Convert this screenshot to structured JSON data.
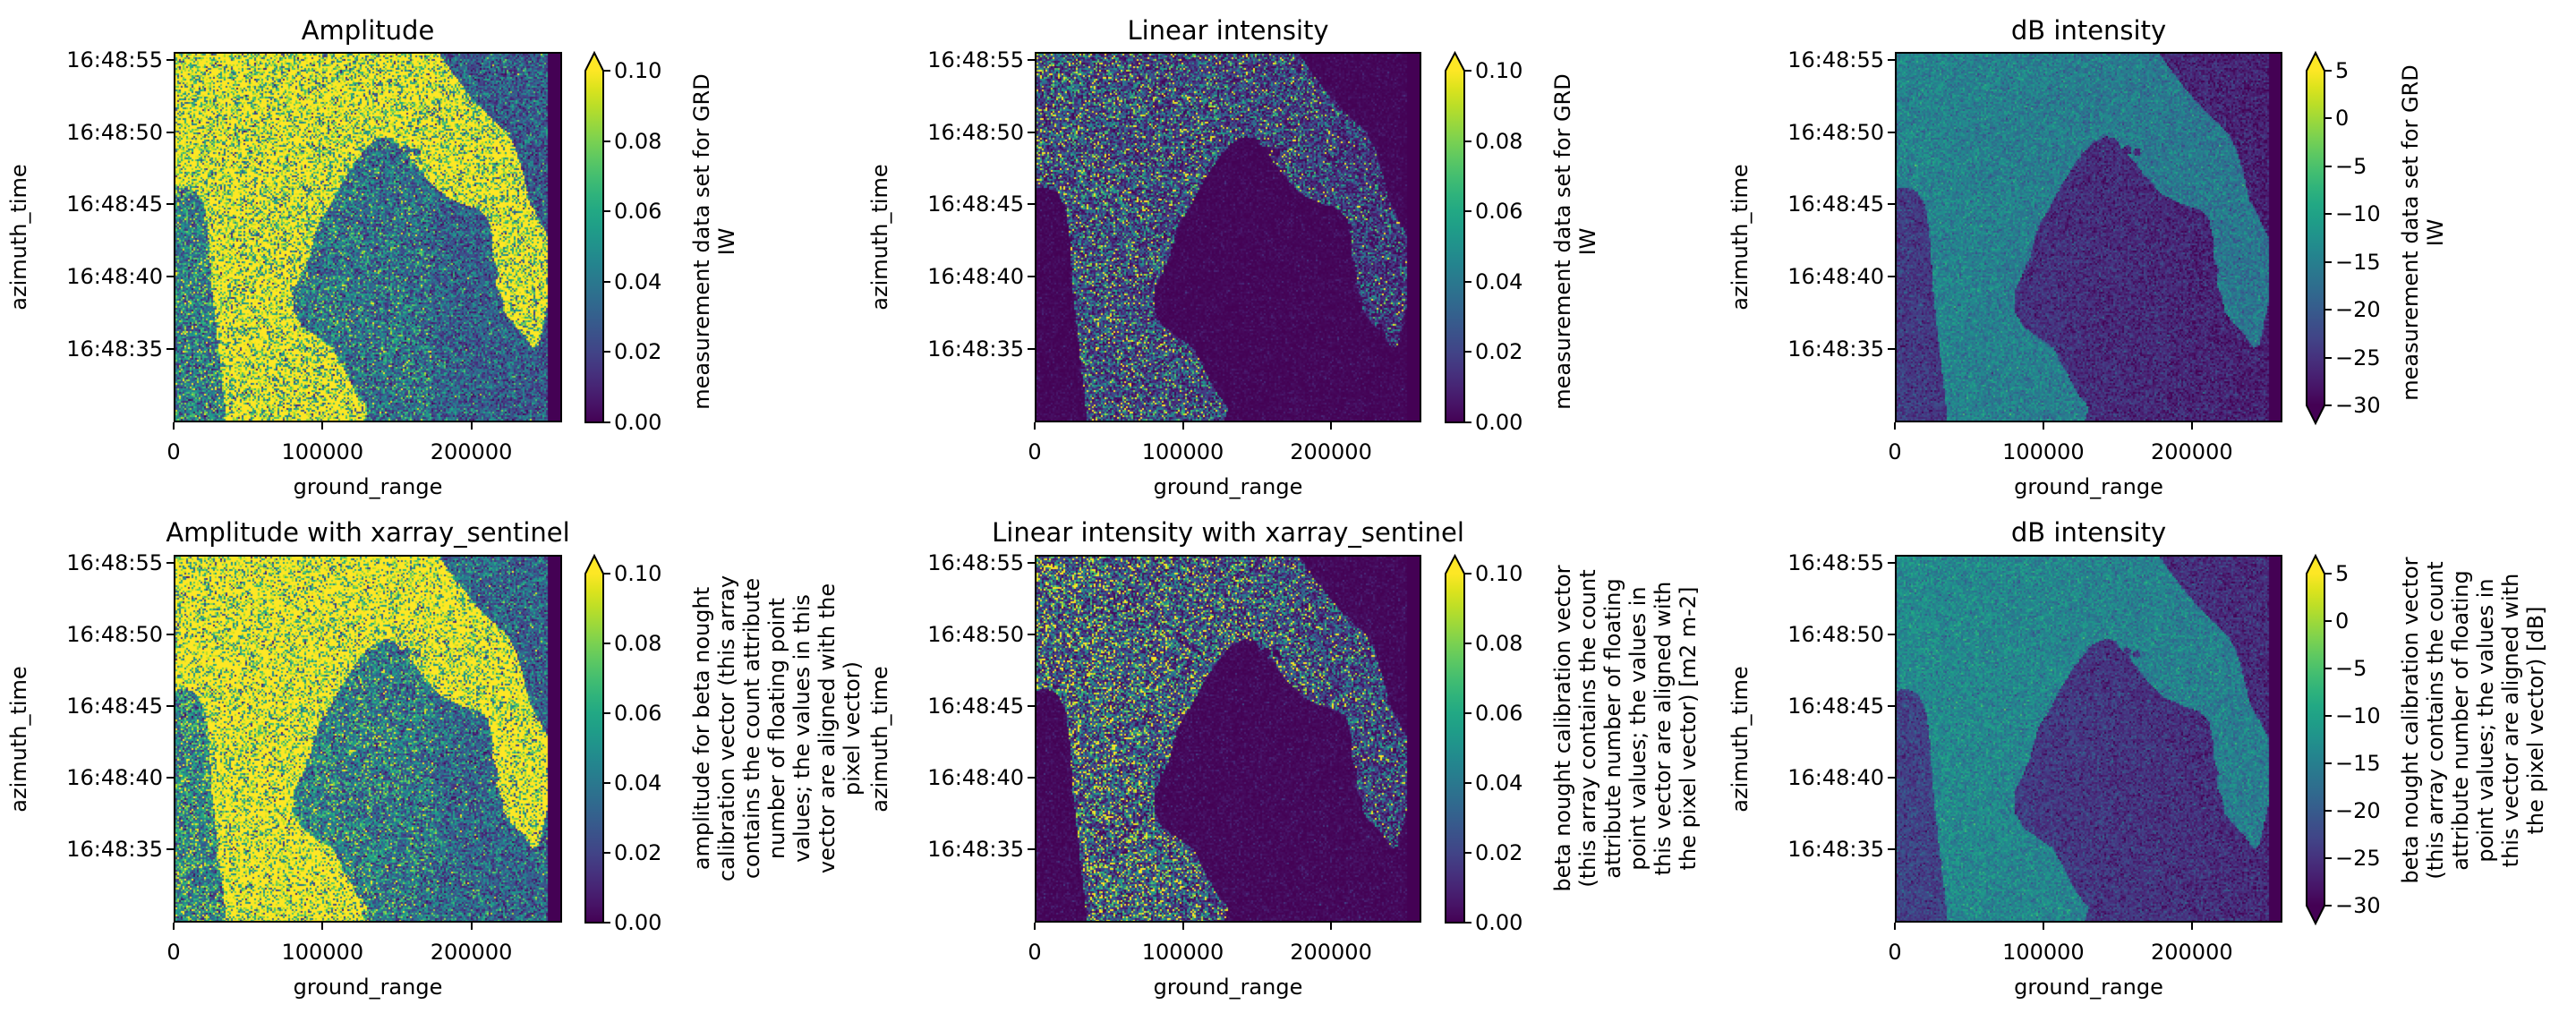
{
  "chart_data": [
    {
      "type": "heatmap",
      "title": "Amplitude",
      "xlabel": "ground_range",
      "ylabel": "azimuth_time",
      "xlim": [
        0,
        261000
      ],
      "xticks": [
        0,
        100000,
        200000
      ],
      "xtick_labels": [
        "0",
        "100000",
        "200000"
      ],
      "yticks": [
        "16:48:55",
        "16:48:50",
        "16:48:45",
        "16:48:40",
        "16:48:35"
      ],
      "colormap": "viridis",
      "clim": [
        0.0,
        0.1
      ],
      "extend": "max",
      "colorbar_ticks": [
        "0.10",
        "0.08",
        "0.06",
        "0.04",
        "0.02",
        "0.00"
      ],
      "colorbar_label": [
        "measurement data set for GRD",
        "IW"
      ],
      "render": {
        "mode": "amplitude",
        "land": 0.12,
        "sea": 0.045,
        "seed": 11
      }
    },
    {
      "type": "heatmap",
      "title": "Linear intensity",
      "xlabel": "ground_range",
      "ylabel": "azimuth_time",
      "xlim": [
        0,
        261000
      ],
      "xticks": [
        0,
        100000,
        200000
      ],
      "xtick_labels": [
        "0",
        "100000",
        "200000"
      ],
      "yticks": [
        "16:48:55",
        "16:48:50",
        "16:48:45",
        "16:48:40",
        "16:48:35"
      ],
      "colormap": "viridis",
      "clim": [
        0.0,
        0.1
      ],
      "extend": "max",
      "colorbar_ticks": [
        "0.10",
        "0.08",
        "0.06",
        "0.04",
        "0.02",
        "0.00"
      ],
      "colorbar_label": [
        "measurement data set for GRD",
        "IW"
      ],
      "render": {
        "mode": "linear",
        "land": 0.035,
        "sea": 0.002,
        "seed": 23
      }
    },
    {
      "type": "heatmap",
      "title": "dB intensity",
      "xlabel": "ground_range",
      "ylabel": "azimuth_time",
      "xlim": [
        0,
        261000
      ],
      "xticks": [
        0,
        100000,
        200000
      ],
      "xtick_labels": [
        "0",
        "100000",
        "200000"
      ],
      "yticks": [
        "16:48:55",
        "16:48:50",
        "16:48:45",
        "16:48:40",
        "16:48:35"
      ],
      "colormap": "viridis",
      "clim": [
        -30,
        5
      ],
      "extend": "both",
      "colorbar_ticks": [
        "5",
        "0",
        "−5",
        "−10",
        "−15",
        "−20",
        "−25",
        "−30"
      ],
      "colorbar_label": [
        "measurement data set for GRD",
        "IW"
      ],
      "render": {
        "mode": "db",
        "land": -14,
        "sea": -24,
        "seed": 37
      }
    },
    {
      "type": "heatmap",
      "title": "Amplitude with xarray_sentinel",
      "xlabel": "ground_range",
      "ylabel": "azimuth_time",
      "xlim": [
        0,
        261000
      ],
      "xticks": [
        0,
        100000,
        200000
      ],
      "xtick_labels": [
        "0",
        "100000",
        "200000"
      ],
      "yticks": [
        "16:48:55",
        "16:48:50",
        "16:48:45",
        "16:48:40",
        "16:48:35"
      ],
      "colormap": "viridis",
      "clim": [
        0.0,
        0.1
      ],
      "extend": "max",
      "colorbar_ticks": [
        "0.10",
        "0.08",
        "0.06",
        "0.04",
        "0.02",
        "0.00"
      ],
      "colorbar_label": [
        "amplitude for beta nought",
        "calibration vector (this array",
        "contains the count attribute",
        "number of floating point",
        "values; the values in this",
        "vector are aligned with the",
        "pixel vector)"
      ],
      "render": {
        "mode": "amplitude",
        "land": 0.13,
        "sea": 0.05,
        "seed": 53
      }
    },
    {
      "type": "heatmap",
      "title": "Linear intensity with xarray_sentinel",
      "xlabel": "ground_range",
      "ylabel": "azimuth_time",
      "xlim": [
        0,
        261000
      ],
      "xticks": [
        0,
        100000,
        200000
      ],
      "xtick_labels": [
        "0",
        "100000",
        "200000"
      ],
      "yticks": [
        "16:48:55",
        "16:48:50",
        "16:48:45",
        "16:48:40",
        "16:48:35"
      ],
      "colormap": "viridis",
      "clim": [
        0.0,
        0.1
      ],
      "extend": "max",
      "colorbar_ticks": [
        "0.10",
        "0.08",
        "0.06",
        "0.04",
        "0.02",
        "0.00"
      ],
      "colorbar_label": [
        "beta nought calibration vector",
        "(this array contains the count",
        "attribute number of floating",
        "point values; the values in",
        "this vector are aligned with",
        "the pixel vector) [m2 m-2]"
      ],
      "render": {
        "mode": "linear",
        "land": 0.045,
        "sea": 0.0025,
        "seed": 71
      }
    },
    {
      "type": "heatmap",
      "title": "dB intensity",
      "xlabel": "ground_range",
      "ylabel": "azimuth_time",
      "xlim": [
        0,
        261000
      ],
      "xticks": [
        0,
        100000,
        200000
      ],
      "xtick_labels": [
        "0",
        "100000",
        "200000"
      ],
      "yticks": [
        "16:48:55",
        "16:48:50",
        "16:48:45",
        "16:48:40",
        "16:48:35"
      ],
      "colormap": "viridis",
      "clim": [
        -30,
        5
      ],
      "extend": "both",
      "colorbar_ticks": [
        "5",
        "0",
        "−5",
        "−10",
        "−15",
        "−20",
        "−25",
        "−30"
      ],
      "colorbar_label": [
        "beta nought calibration vector",
        "(this array contains the count",
        "attribute number of floating",
        "point values; the values in",
        "this vector are aligned with",
        "the pixel vector) [dB]"
      ],
      "render": {
        "mode": "db",
        "land": -13,
        "sea": -23,
        "seed": 89
      }
    }
  ]
}
